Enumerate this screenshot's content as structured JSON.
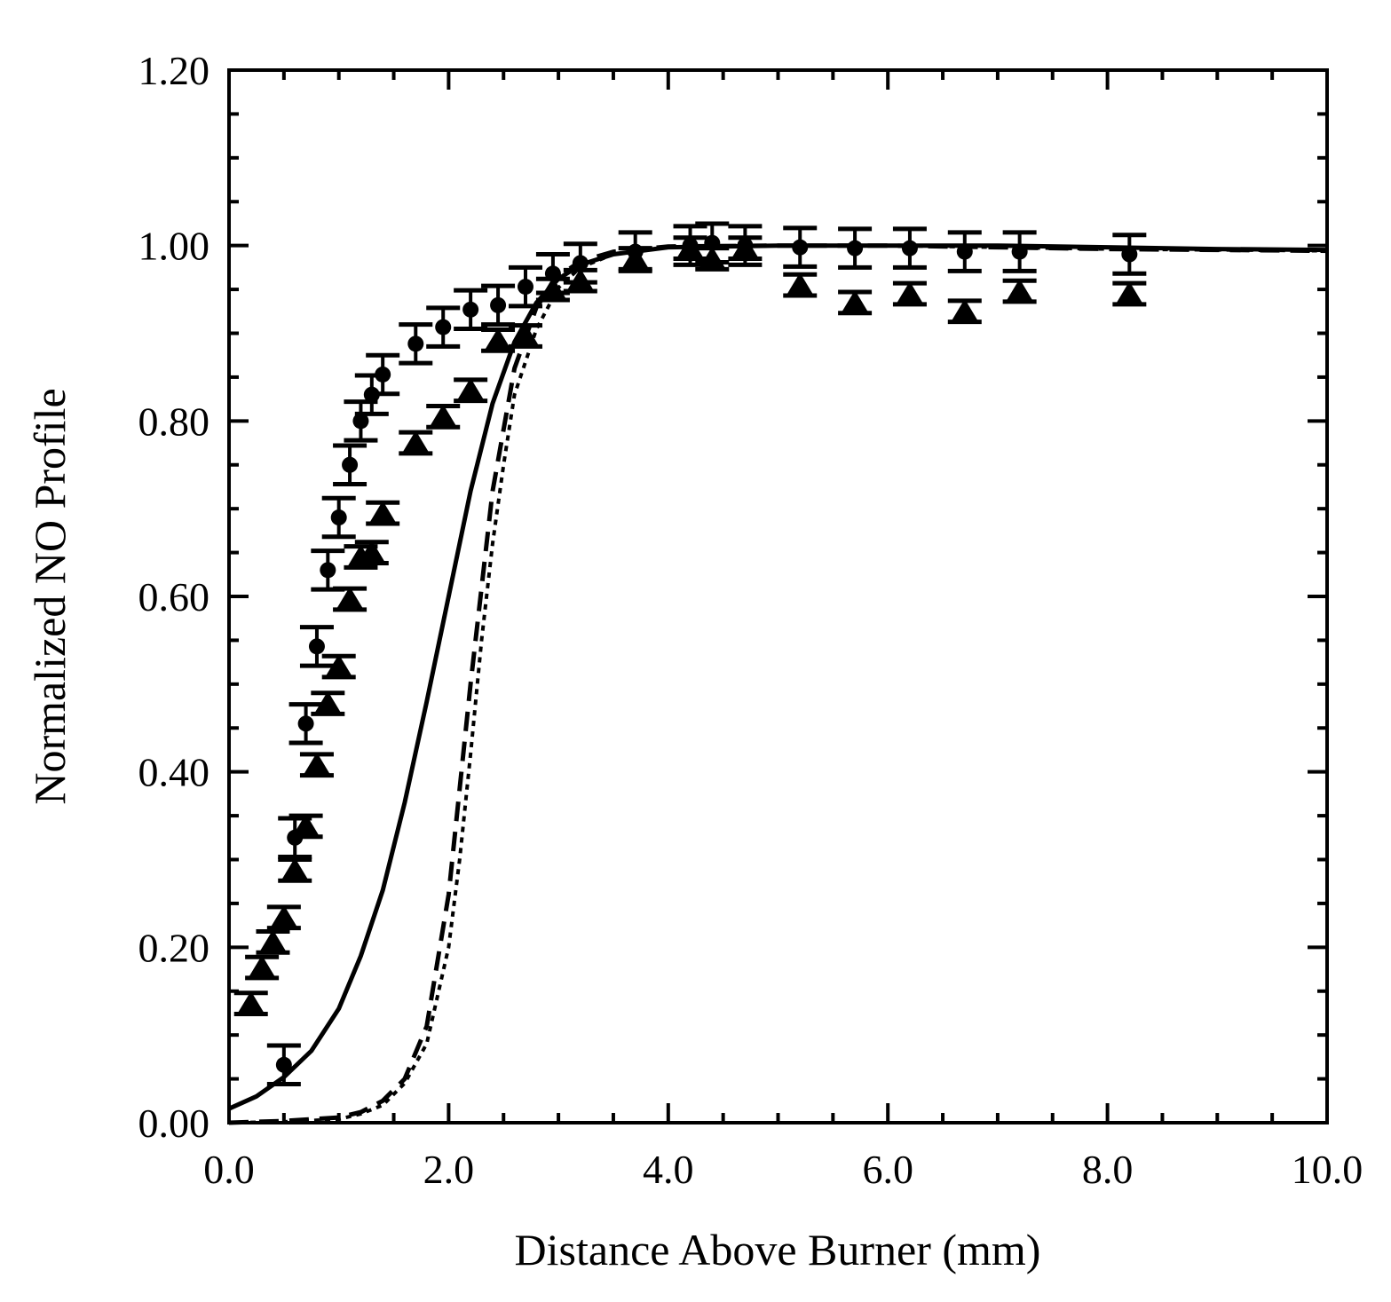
{
  "chart_data": {
    "type": "scatter",
    "title": "",
    "xlabel": "Distance Above Burner (mm)",
    "ylabel": "Normalized NO Profile",
    "xlim": [
      0,
      10
    ],
    "ylim": [
      0,
      1.2
    ],
    "grid": false,
    "legend": "none",
    "x_ticks": [
      0,
      2,
      4,
      6,
      8,
      10
    ],
    "x_tick_labels": [
      "0.0",
      "2.0",
      "4.0",
      "6.0",
      "8.0",
      "10.0"
    ],
    "y_ticks": [
      0,
      0.2,
      0.4,
      0.6,
      0.8,
      1.0,
      1.2
    ],
    "y_tick_labels": [
      "0.00",
      "0.20",
      "0.40",
      "0.60",
      "0.80",
      "1.00",
      "1.20"
    ],
    "colors": {
      "ink": "#000000",
      "background": "#ffffff"
    },
    "series": [
      {
        "name": "circles",
        "marker": "circle",
        "error": 0.022,
        "points": [
          [
            0.5,
            0.066
          ],
          [
            0.6,
            0.325
          ],
          [
            0.7,
            0.455
          ],
          [
            0.8,
            0.543
          ],
          [
            0.9,
            0.63
          ],
          [
            1.0,
            0.69
          ],
          [
            1.1,
            0.75
          ],
          [
            1.2,
            0.8
          ],
          [
            1.3,
            0.83
          ],
          [
            1.4,
            0.853
          ],
          [
            1.7,
            0.888
          ],
          [
            1.95,
            0.907
          ],
          [
            2.2,
            0.927
          ],
          [
            2.45,
            0.932
          ],
          [
            2.7,
            0.953
          ],
          [
            2.95,
            0.968
          ],
          [
            3.2,
            0.98
          ],
          [
            3.7,
            0.993
          ],
          [
            4.2,
            1.0
          ],
          [
            4.4,
            1.003
          ],
          [
            4.7,
            1.0
          ],
          [
            5.2,
            0.998
          ],
          [
            5.7,
            0.997
          ],
          [
            6.2,
            0.997
          ],
          [
            6.7,
            0.993
          ],
          [
            7.2,
            0.993
          ],
          [
            8.2,
            0.99
          ]
        ]
      },
      {
        "name": "triangles",
        "marker": "triangle",
        "error": 0.012,
        "points": [
          [
            0.2,
            0.136
          ],
          [
            0.3,
            0.177
          ],
          [
            0.4,
            0.206
          ],
          [
            0.5,
            0.234
          ],
          [
            0.6,
            0.288
          ],
          [
            0.7,
            0.338
          ],
          [
            0.8,
            0.408
          ],
          [
            0.9,
            0.478
          ],
          [
            1.0,
            0.52
          ],
          [
            1.1,
            0.597
          ],
          [
            1.2,
            0.645
          ],
          [
            1.3,
            0.65
          ],
          [
            1.4,
            0.695
          ],
          [
            1.7,
            0.775
          ],
          [
            1.95,
            0.805
          ],
          [
            2.2,
            0.835
          ],
          [
            2.45,
            0.892
          ],
          [
            2.7,
            0.897
          ],
          [
            2.95,
            0.95
          ],
          [
            3.2,
            0.96
          ],
          [
            3.7,
            0.985
          ],
          [
            4.2,
            0.997
          ],
          [
            4.4,
            0.985
          ],
          [
            4.7,
            0.997
          ],
          [
            5.2,
            0.955
          ],
          [
            5.7,
            0.935
          ],
          [
            6.2,
            0.945
          ],
          [
            6.7,
            0.925
          ],
          [
            7.2,
            0.948
          ],
          [
            8.2,
            0.945
          ]
        ]
      },
      {
        "name": "solid model",
        "line": "solid",
        "x": [
          0.0,
          0.25,
          0.5,
          0.75,
          1.0,
          1.2,
          1.4,
          1.6,
          1.8,
          2.0,
          2.2,
          2.4,
          2.6,
          2.8,
          3.0,
          3.2,
          3.5,
          4.0,
          5.0,
          6.0,
          7.0,
          8.0,
          9.0,
          10.0
        ],
        "y": [
          0.016,
          0.03,
          0.052,
          0.082,
          0.13,
          0.19,
          0.265,
          0.365,
          0.48,
          0.6,
          0.72,
          0.82,
          0.89,
          0.935,
          0.962,
          0.978,
          0.99,
          0.998,
          1.0,
          1.0,
          1.0,
          0.998,
          0.996,
          0.995
        ]
      },
      {
        "name": "dashed model",
        "line": "dashed",
        "x": [
          0.0,
          0.5,
          1.0,
          1.2,
          1.4,
          1.6,
          1.8,
          2.0,
          2.2,
          2.4,
          2.6,
          2.8,
          3.0,
          3.2,
          3.5,
          4.0,
          5.0,
          6.0,
          7.0,
          8.0,
          9.0,
          10.0
        ],
        "y": [
          0.0,
          0.002,
          0.006,
          0.012,
          0.025,
          0.05,
          0.11,
          0.26,
          0.5,
          0.72,
          0.86,
          0.93,
          0.965,
          0.982,
          0.993,
          0.999,
          1.0,
          1.0,
          0.998,
          0.996,
          0.995,
          0.994
        ]
      },
      {
        "name": "dotted model",
        "line": "dotted",
        "x": [
          0.0,
          0.5,
          1.0,
          1.2,
          1.4,
          1.6,
          1.8,
          2.0,
          2.1,
          2.2,
          2.3,
          2.4,
          2.5,
          2.6,
          2.8,
          3.0,
          3.2,
          3.5,
          4.0,
          5.0,
          6.0,
          7.0,
          8.0,
          9.0,
          10.0
        ],
        "y": [
          0.0,
          0.001,
          0.004,
          0.01,
          0.02,
          0.045,
          0.09,
          0.2,
          0.3,
          0.42,
          0.55,
          0.66,
          0.75,
          0.83,
          0.905,
          0.952,
          0.975,
          0.99,
          0.998,
          1.0,
          1.0,
          0.998,
          0.996,
          0.995,
          0.994
        ]
      }
    ]
  }
}
